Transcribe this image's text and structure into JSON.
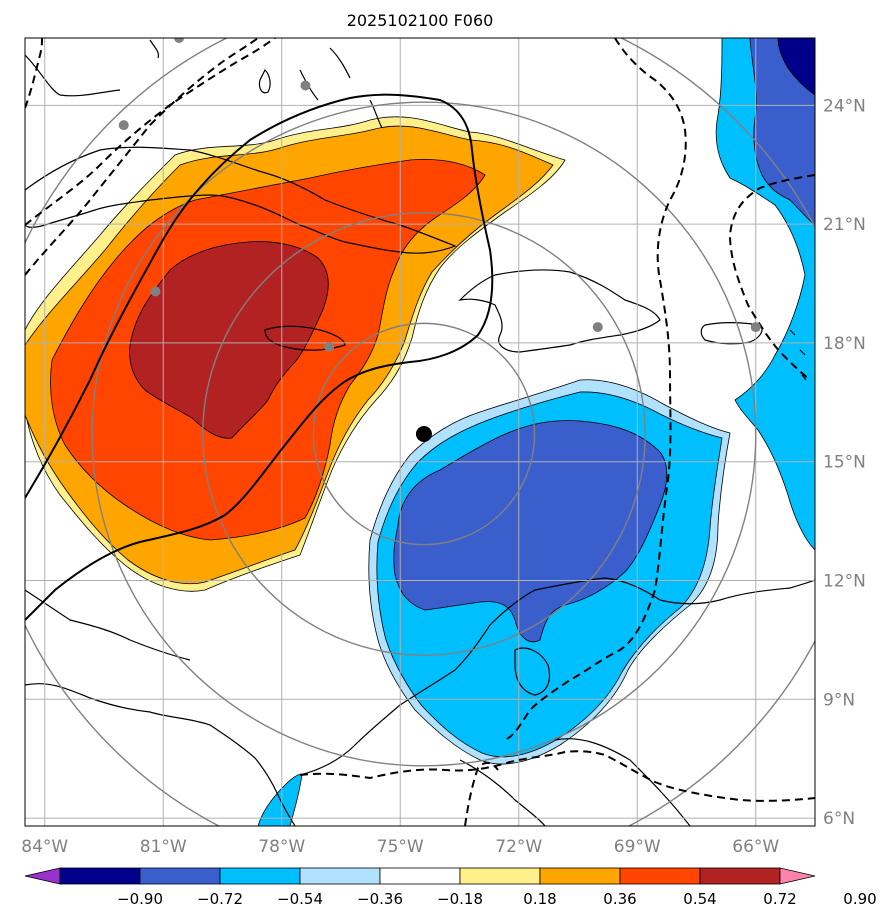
{
  "title": "2025102100 F060",
  "map": {
    "lon_min": -84.5,
    "lon_max": -64.5,
    "lat_min": 5.8,
    "lat_max": 25.7,
    "lon_ticks": [
      {
        "value": -84,
        "label": "84°W"
      },
      {
        "value": -81,
        "label": "81°W"
      },
      {
        "value": -78,
        "label": "78°W"
      },
      {
        "value": -75,
        "label": "75°W"
      },
      {
        "value": -72,
        "label": "72°W"
      },
      {
        "value": -69,
        "label": "69°W"
      },
      {
        "value": -66,
        "label": "66°W"
      }
    ],
    "lat_ticks": [
      {
        "value": 24,
        "label": "24°N"
      },
      {
        "value": 21,
        "label": "21°N"
      },
      {
        "value": 18,
        "label": "18°N"
      },
      {
        "value": 15,
        "label": "15°N"
      },
      {
        "value": 12,
        "label": "12°N"
      },
      {
        "value": 9,
        "label": "9°N"
      },
      {
        "value": 6,
        "label": "6°N"
      }
    ],
    "storm_center": {
      "lon": -74.4,
      "lat": 15.7
    },
    "range_rings_deg": [
      2.8,
      5.6,
      8.4,
      11.2
    ],
    "stations": [
      {
        "lon": -82.0,
        "lat": 23.5
      },
      {
        "lon": -80.6,
        "lat": 25.7
      },
      {
        "lon": -77.4,
        "lat": 24.5
      },
      {
        "lon": -81.2,
        "lat": 19.3
      },
      {
        "lon": -76.8,
        "lat": 17.9
      },
      {
        "lon": -70.0,
        "lat": 18.4
      },
      {
        "lon": -66.0,
        "lat": 18.4
      }
    ]
  },
  "colors": {
    "neg_090": "#00008b",
    "neg_072": "#3a5fcd",
    "neg_054": "#00bfff",
    "neg_036": "#b0e2ff",
    "zero": "#ffffff",
    "pos_018": "#fff08c",
    "pos_036": "#ffa500",
    "pos_054": "#ff4500",
    "pos_072": "#b22222",
    "pos_090": "#ff82ab",
    "under": "#9932cc"
  },
  "colorbar": {
    "bins": [
      "#9932cc",
      "#00008b",
      "#3a5fcd",
      "#00bfff",
      "#b0e2ff",
      "#ffffff",
      "#fff08c",
      "#ffa500",
      "#ff4500",
      "#b22222",
      "#ff82ab"
    ],
    "labels": [
      "−0.90",
      "−0.72",
      "−0.54",
      "−0.36",
      "−0.18",
      "0.18",
      "0.36",
      "0.54",
      "0.72",
      "0.90"
    ]
  }
}
